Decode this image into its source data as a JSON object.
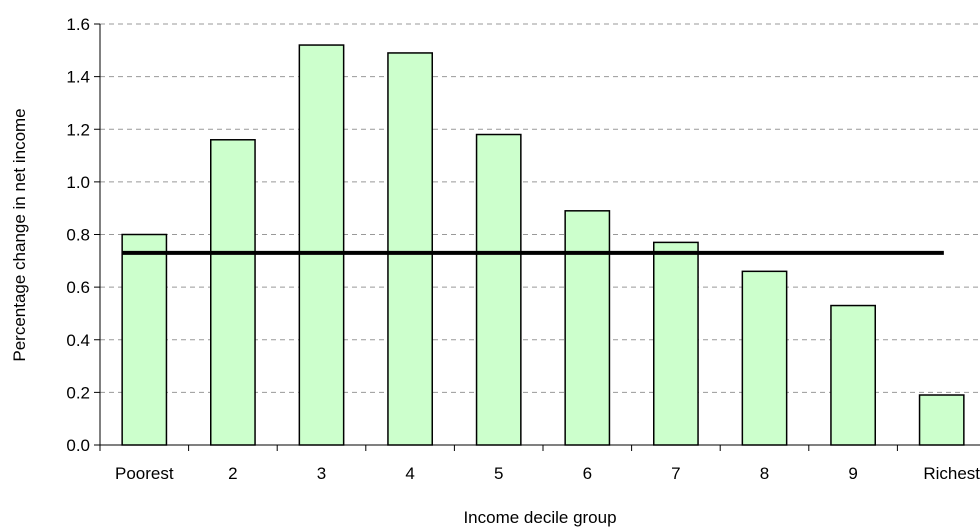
{
  "chart_data": {
    "type": "bar",
    "categories": [
      "Poorest",
      "2",
      "3",
      "4",
      "5",
      "6",
      "7",
      "8",
      "9",
      "Richest"
    ],
    "values": [
      0.8,
      1.16,
      1.52,
      1.49,
      1.18,
      0.89,
      0.77,
      0.66,
      0.53,
      0.19
    ],
    "reference_line": {
      "value": 0.73
    },
    "xlabel": "Income decile group",
    "ylabel": "Percentage change in net income",
    "ylim": [
      0,
      1.6
    ],
    "yticks": [
      "0.0",
      "0.2",
      "0.4",
      "0.6",
      "0.8",
      "1.0",
      "1.2",
      "1.4",
      "1.6"
    ],
    "grid": "horizontal dashed",
    "legend": "none",
    "colors": {
      "bar_fill": "#ccffcc",
      "bar_stroke": "#000000",
      "line": "#000000",
      "grid": "#999999"
    }
  }
}
